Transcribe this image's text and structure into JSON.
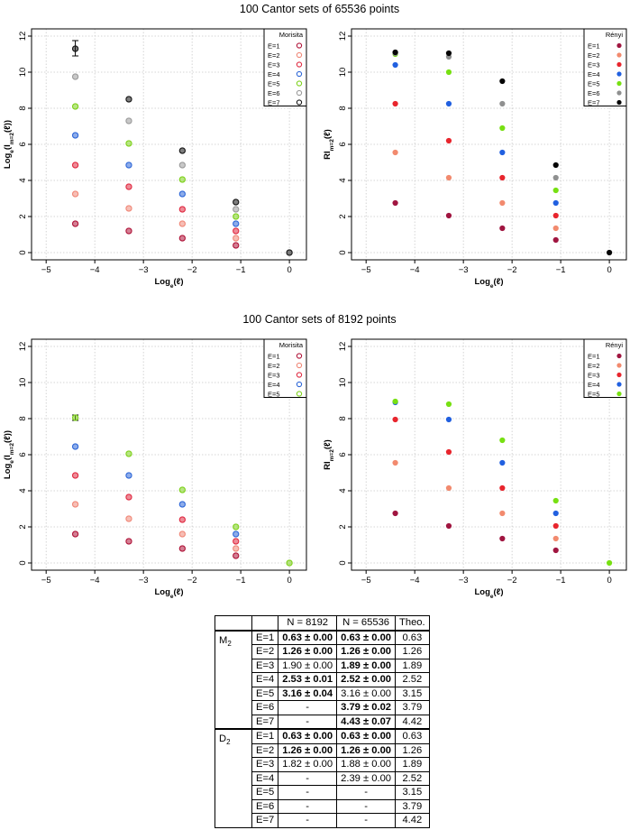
{
  "titles": {
    "top": "100 Cantor sets of 65536 points",
    "bottom": "100 Cantor sets of 8192 points"
  },
  "chart_data": [
    {
      "id": "chart-65536-morisita",
      "type": "scatter",
      "title": "",
      "xlabel": "Log_e(ℓ)",
      "ylabel": "Log_e(I_m=2(ℓ))",
      "xlim": [
        -5.3,
        0.35
      ],
      "ylim": [
        -0.4,
        12.4
      ],
      "xticks": [
        -5,
        -4,
        -3,
        -2,
        -1,
        0
      ],
      "yticks": [
        0,
        2,
        4,
        6,
        8,
        10,
        12
      ],
      "legend_title": "Morisita",
      "legend_location": "top-right",
      "marker": "open-circle",
      "x": [
        -4.4,
        -3.3,
        -2.2,
        -1.1,
        0
      ],
      "series": [
        {
          "name": "E=1",
          "color": "#b0153a",
          "values": [
            1.6,
            1.2,
            0.8,
            0.4,
            0
          ]
        },
        {
          "name": "E=2",
          "color": "#f08878",
          "values": [
            3.25,
            2.45,
            1.6,
            0.8,
            0
          ]
        },
        {
          "name": "E=3",
          "color": "#e02b42",
          "values": [
            4.85,
            3.65,
            2.4,
            1.2,
            0
          ]
        },
        {
          "name": "E=4",
          "color": "#2f68d8",
          "values": [
            6.5,
            4.85,
            3.25,
            1.6,
            0
          ]
        },
        {
          "name": "E=5",
          "color": "#7ed11c",
          "values": [
            8.1,
            6.05,
            4.05,
            2.0,
            0
          ]
        },
        {
          "name": "E=6",
          "color": "#9b9b9b",
          "values": [
            9.75,
            7.3,
            4.85,
            2.4,
            0
          ]
        },
        {
          "name": "E=7",
          "color": "#151515",
          "values": [
            11.3,
            8.5,
            5.65,
            2.8,
            0
          ]
        }
      ],
      "error_bar": {
        "series": "E=7",
        "x": -4.4,
        "low": 10.9,
        "high": 11.75
      }
    },
    {
      "id": "chart-65536-renyi",
      "type": "scatter",
      "title": "",
      "xlabel": "Log_e(ℓ)",
      "ylabel": "RI_m=2(ℓ)",
      "xlim": [
        -5.3,
        0.35
      ],
      "ylim": [
        -0.4,
        12.4
      ],
      "xticks": [
        -5,
        -4,
        -3,
        -2,
        -1,
        0
      ],
      "yticks": [
        0,
        2,
        4,
        6,
        8,
        10,
        12
      ],
      "legend_title": "Rényi",
      "legend_location": "top-right",
      "marker": "filled-circle",
      "x": [
        -4.4,
        -3.3,
        -2.2,
        -1.1,
        0
      ],
      "series": [
        {
          "name": "E=1",
          "color": "#a01540",
          "values": [
            2.75,
            2.05,
            1.35,
            0.7,
            0
          ]
        },
        {
          "name": "E=2",
          "color": "#f28a6e",
          "values": [
            5.55,
            4.15,
            2.75,
            1.35,
            0
          ]
        },
        {
          "name": "E=3",
          "color": "#e8252d",
          "values": [
            8.25,
            6.2,
            4.15,
            2.05,
            0
          ]
        },
        {
          "name": "E=4",
          "color": "#2160e0",
          "values": [
            10.4,
            8.25,
            5.55,
            2.75,
            0
          ]
        },
        {
          "name": "E=5",
          "color": "#77e012",
          "values": [
            11.0,
            10.0,
            6.9,
            3.45,
            0
          ]
        },
        {
          "name": "E=6",
          "color": "#8f9090",
          "values": [
            11.05,
            10.85,
            8.25,
            4.15,
            0
          ]
        },
        {
          "name": "E=7",
          "color": "#050505",
          "values": [
            11.1,
            11.05,
            9.5,
            4.85,
            0
          ]
        }
      ]
    },
    {
      "id": "chart-8192-morisita",
      "type": "scatter",
      "title": "",
      "xlabel": "Log_e(ℓ)",
      "ylabel": "Log_e(I_m=2(ℓ))",
      "xlim": [
        -5.3,
        0.35
      ],
      "ylim": [
        -0.4,
        12.4
      ],
      "xticks": [
        -5,
        -4,
        -3,
        -2,
        -1,
        0
      ],
      "yticks": [
        0,
        2,
        4,
        6,
        8,
        10,
        12
      ],
      "legend_title": "Morisita",
      "legend_location": "top-right",
      "marker": "open-circle",
      "x": [
        -4.4,
        -3.3,
        -2.2,
        -1.1,
        0
      ],
      "series": [
        {
          "name": "E=1",
          "color": "#b0153a",
          "values": [
            1.6,
            1.2,
            0.8,
            0.4,
            0
          ]
        },
        {
          "name": "E=2",
          "color": "#f08878",
          "values": [
            3.25,
            2.45,
            1.6,
            0.8,
            0
          ]
        },
        {
          "name": "E=3",
          "color": "#e02b42",
          "values": [
            4.85,
            3.65,
            2.4,
            1.2,
            0
          ]
        },
        {
          "name": "E=4",
          "color": "#2f68d8",
          "values": [
            6.45,
            4.85,
            3.25,
            1.6,
            0
          ]
        },
        {
          "name": "E=5",
          "color": "#7ed11c",
          "values": [
            8.05,
            6.05,
            4.05,
            2.0,
            0
          ]
        }
      ],
      "error_bar": {
        "series": "E=5",
        "x": -4.4,
        "low": 7.9,
        "high": 8.2
      }
    },
    {
      "id": "chart-8192-renyi",
      "type": "scatter",
      "title": "",
      "xlabel": "Log_e(ℓ)",
      "ylabel": "RI_m=2(ℓ)",
      "xlim": [
        -5.3,
        0.35
      ],
      "ylim": [
        -0.4,
        12.4
      ],
      "xticks": [
        -5,
        -4,
        -3,
        -2,
        -1,
        0
      ],
      "yticks": [
        0,
        2,
        4,
        6,
        8,
        10,
        12
      ],
      "legend_title": "Rényi",
      "legend_location": "top-right",
      "marker": "filled-circle",
      "x": [
        -4.4,
        -3.3,
        -2.2,
        -1.1,
        0
      ],
      "series": [
        {
          "name": "E=1",
          "color": "#a01540",
          "values": [
            2.75,
            2.05,
            1.35,
            0.7,
            0
          ]
        },
        {
          "name": "E=2",
          "color": "#f28a6e",
          "values": [
            5.55,
            4.15,
            2.75,
            1.35,
            0
          ]
        },
        {
          "name": "E=3",
          "color": "#e8252d",
          "values": [
            7.95,
            6.15,
            4.15,
            2.05,
            0
          ]
        },
        {
          "name": "E=4",
          "color": "#2160e0",
          "values": [
            8.9,
            7.95,
            5.55,
            2.75,
            0
          ]
        },
        {
          "name": "E=5",
          "color": "#77e012",
          "values": [
            8.95,
            8.8,
            6.8,
            3.45,
            0
          ]
        }
      ]
    },
    {
      "id": "results-table",
      "type": "table",
      "columns": [
        "",
        "",
        "N = 8192",
        "N = 65536",
        "Theo."
      ],
      "groups": [
        {
          "label": "M",
          "subscript": "2",
          "rows": [
            {
              "e": "E=1",
              "n8192": "0.63 ± 0.00",
              "n65536": "0.63 ± 0.00",
              "theo": "0.63",
              "bold8192": true,
              "bold65536": true
            },
            {
              "e": "E=2",
              "n8192": "1.26 ± 0.00",
              "n65536": "1.26 ± 0.00",
              "theo": "1.26",
              "bold8192": true,
              "bold65536": true
            },
            {
              "e": "E=3",
              "n8192": "1.90 ± 0.00",
              "n65536": "1.89 ± 0.00",
              "theo": "1.89",
              "bold8192": false,
              "bold65536": true
            },
            {
              "e": "E=4",
              "n8192": "2.53 ± 0.01",
              "n65536": "2.52 ± 0.00",
              "theo": "2.52",
              "bold8192": true,
              "bold65536": true
            },
            {
              "e": "E=5",
              "n8192": "3.16 ± 0.04",
              "n65536": "3.16 ± 0.00",
              "theo": "3.15",
              "bold8192": true,
              "bold65536": false
            },
            {
              "e": "E=6",
              "n8192": "-",
              "n65536": "3.79 ± 0.02",
              "theo": "3.79",
              "bold8192": false,
              "bold65536": true
            },
            {
              "e": "E=7",
              "n8192": "-",
              "n65536": "4.43 ± 0.07",
              "theo": "4.42",
              "bold8192": false,
              "bold65536": true
            }
          ]
        },
        {
          "label": "D",
          "subscript": "2",
          "rows": [
            {
              "e": "E=1",
              "n8192": "0.63 ± 0.00",
              "n65536": "0.63 ± 0.00",
              "theo": "0.63",
              "bold8192": true,
              "bold65536": true
            },
            {
              "e": "E=2",
              "n8192": "1.26 ± 0.00",
              "n65536": "1.26 ± 0.00",
              "theo": "1.26",
              "bold8192": true,
              "bold65536": true
            },
            {
              "e": "E=3",
              "n8192": "1.82 ± 0.00",
              "n65536": "1.88 ± 0.00",
              "theo": "1.89",
              "bold8192": false,
              "bold65536": false
            },
            {
              "e": "E=4",
              "n8192": "-",
              "n65536": "2.39 ± 0.00",
              "theo": "2.52",
              "bold8192": false,
              "bold65536": false
            },
            {
              "e": "E=5",
              "n8192": "-",
              "n65536": "-",
              "theo": "3.15",
              "bold8192": false,
              "bold65536": false
            },
            {
              "e": "E=6",
              "n8192": "-",
              "n65536": "-",
              "theo": "3.79",
              "bold8192": false,
              "bold65536": false
            },
            {
              "e": "E=7",
              "n8192": "-",
              "n65536": "-",
              "theo": "4.42",
              "bold8192": false,
              "bold65536": false
            }
          ]
        }
      ]
    }
  ]
}
